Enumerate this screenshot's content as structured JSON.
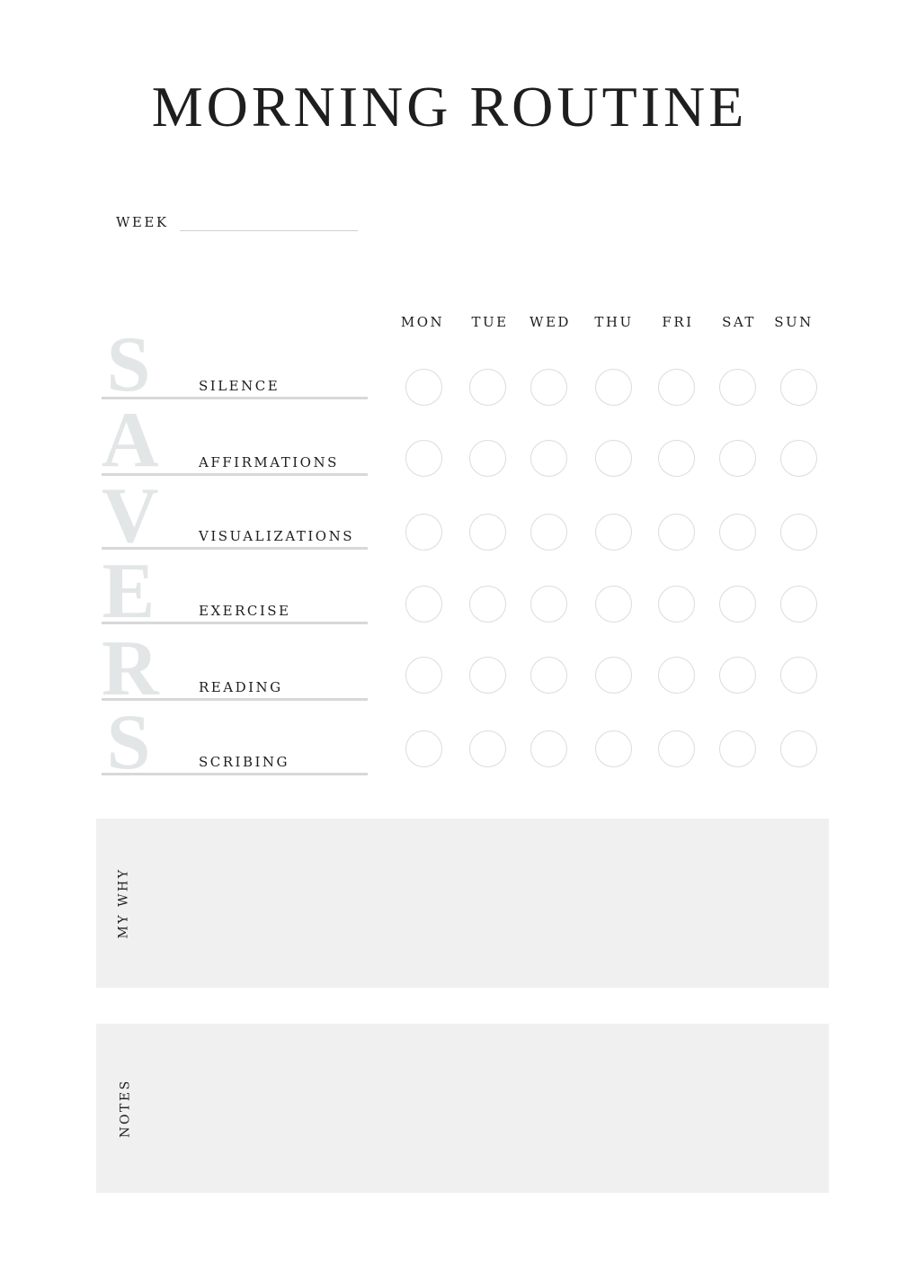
{
  "title": "MORNING ROUTINE",
  "week": {
    "label": "WEEK",
    "value": ""
  },
  "days": [
    "MON",
    "TUE",
    "WED",
    "THU",
    "FRI",
    "SAT",
    "SUN"
  ],
  "acronym": "SAVERS",
  "habits": [
    {
      "letter": "S",
      "label": "SILENCE",
      "checked": [
        false,
        false,
        false,
        false,
        false,
        false,
        false
      ]
    },
    {
      "letter": "A",
      "label": "AFFIRMATIONS",
      "checked": [
        false,
        false,
        false,
        false,
        false,
        false,
        false
      ]
    },
    {
      "letter": "V",
      "label": "VISUALIZATIONS",
      "checked": [
        false,
        false,
        false,
        false,
        false,
        false,
        false
      ]
    },
    {
      "letter": "E",
      "label": "EXERCISE",
      "checked": [
        false,
        false,
        false,
        false,
        false,
        false,
        false
      ]
    },
    {
      "letter": "R",
      "label": "READING",
      "checked": [
        false,
        false,
        false,
        false,
        false,
        false,
        false
      ]
    },
    {
      "letter": "S",
      "label": "SCRIBING",
      "checked": [
        false,
        false,
        false,
        false,
        false,
        false,
        false
      ]
    }
  ],
  "sections": {
    "my_why": "MY WHY",
    "notes": "NOTES"
  },
  "colors": {
    "text": "#1e1e1e",
    "acronym_letters": "#e3e6e6",
    "box_fill": "#f0f0f0",
    "circle_stroke": "#dcdcdc",
    "divider": "#d8d8d8"
  }
}
